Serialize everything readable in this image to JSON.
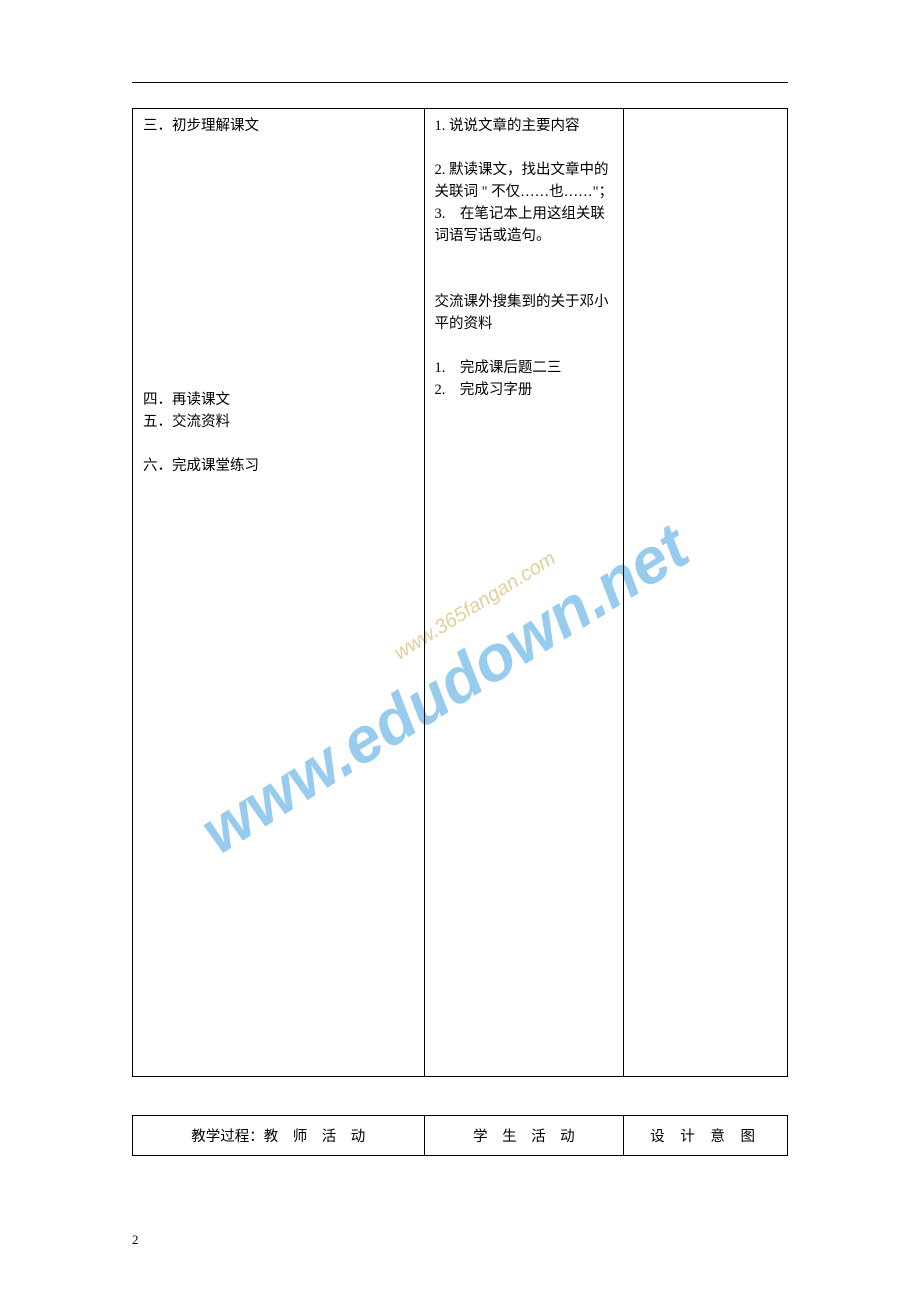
{
  "watermark": {
    "main_text": "www.edudown.net",
    "sub_text": "www.365fangan.com",
    "main_color": "#6bb7e8",
    "sub_color": "#c9a94a",
    "rotation_deg": -32
  },
  "top_rule_color": "#000000",
  "main_table": {
    "row": {
      "teacher": {
        "s3_title": "三．初步理解课文",
        "s4_title": "四．再读课文",
        "s5_title": "五．交流资料",
        "s6_title": "六．完成课堂练习"
      },
      "student": {
        "p1": "1. 说说文章的主要内容",
        "p2a": "2. 默读课文，找出文章中的关联词 \" 不仅……也……\"；",
        "p2b": "3.　在笔记本上用这组关联词语写话或造句。",
        "p3": "交流课外搜集到的关于邓小平的资料",
        "p4a": "1.　完成课后题二三",
        "p4b": "2.　完成习字册"
      },
      "intent": ""
    }
  },
  "sec_table": {
    "h1": "教学过程：教　师　活　动",
    "h2": "学　生　活　动",
    "h3": "设 计 意 图"
  },
  "page_number": "2"
}
